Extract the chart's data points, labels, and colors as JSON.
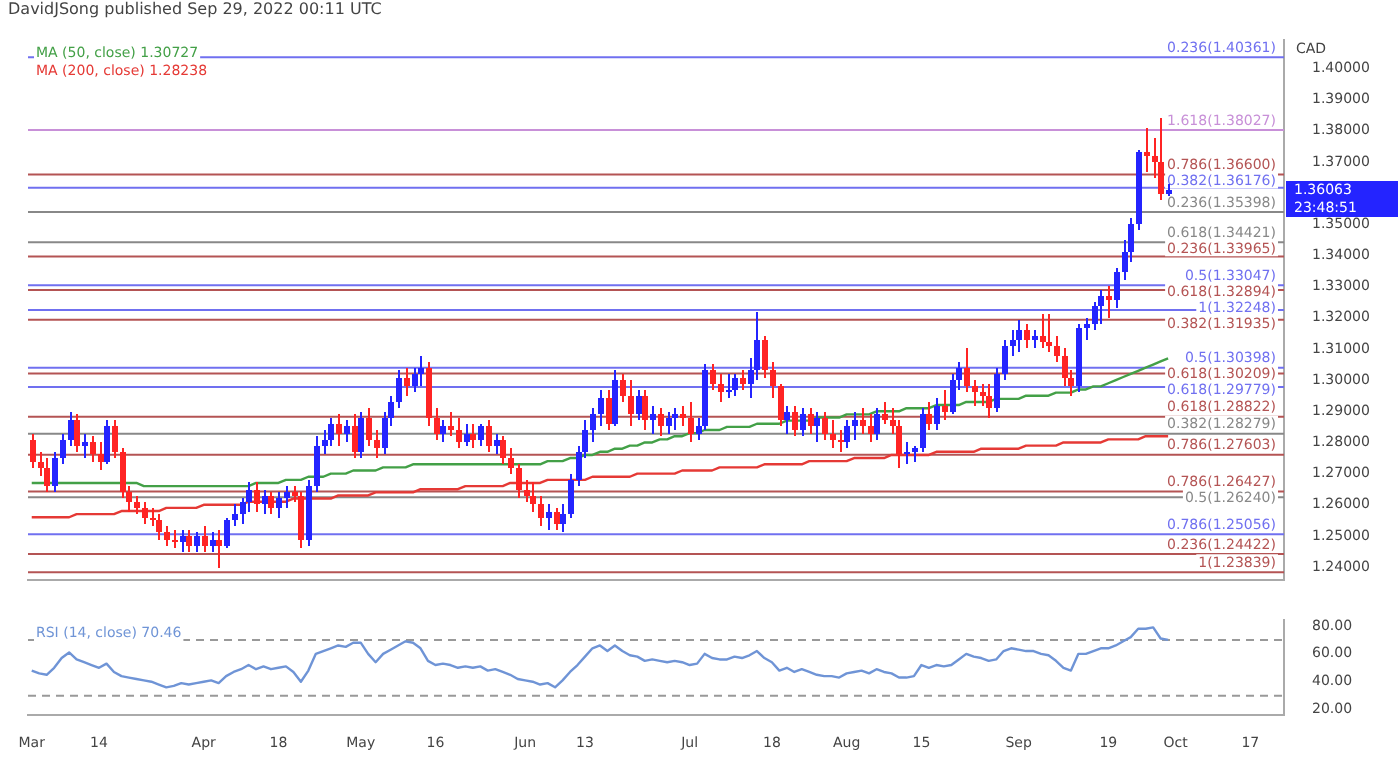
{
  "chart_data": [
    {
      "type": "candlestick",
      "title": "DavidJSong published Sep 29, 2022 00:11 UTC",
      "ylabel": "CAD",
      "legend": "top left",
      "tick_labels": "y",
      "ohlc": [
        [
          1.281,
          1.283,
          1.272,
          1.274
        ],
        [
          1.274,
          1.277,
          1.269,
          1.272
        ],
        [
          1.272,
          1.275,
          1.264,
          1.266
        ],
        [
          1.266,
          1.277,
          1.264,
          1.275
        ],
        [
          1.275,
          1.283,
          1.273,
          1.281
        ],
        [
          1.281,
          1.29,
          1.279,
          1.287
        ],
        [
          1.287,
          1.289,
          1.277,
          1.279
        ],
        [
          1.279,
          1.283,
          1.275,
          1.28
        ],
        [
          1.28,
          1.282,
          1.274,
          1.276
        ],
        [
          1.276,
          1.28,
          1.271,
          1.274
        ],
        [
          1.274,
          1.287,
          1.273,
          1.285
        ],
        [
          1.285,
          1.287,
          1.275,
          1.277
        ],
        [
          1.277,
          1.278,
          1.262,
          1.264
        ],
        [
          1.264,
          1.266,
          1.258,
          1.261
        ],
        [
          1.261,
          1.263,
          1.257,
          1.259
        ],
        [
          1.259,
          1.261,
          1.254,
          1.256
        ],
        [
          1.256,
          1.259,
          1.253,
          1.255
        ],
        [
          1.255,
          1.257,
          1.249,
          1.251
        ],
        [
          1.251,
          1.253,
          1.247,
          1.249
        ],
        [
          1.249,
          1.252,
          1.246,
          1.248
        ],
        [
          1.248,
          1.252,
          1.245,
          1.25
        ],
        [
          1.25,
          1.252,
          1.245,
          1.247
        ],
        [
          1.247,
          1.251,
          1.245,
          1.25
        ],
        [
          1.25,
          1.253,
          1.245,
          1.247
        ],
        [
          1.247,
          1.251,
          1.245,
          1.249
        ],
        [
          1.249,
          1.252,
          1.24,
          1.247
        ],
        [
          1.247,
          1.256,
          1.246,
          1.255
        ],
        [
          1.255,
          1.26,
          1.253,
          1.257
        ],
        [
          1.257,
          1.262,
          1.254,
          1.261
        ],
        [
          1.261,
          1.267,
          1.258,
          1.265
        ],
        [
          1.265,
          1.267,
          1.258,
          1.26
        ],
        [
          1.26,
          1.265,
          1.257,
          1.263
        ],
        [
          1.263,
          1.264,
          1.257,
          1.259
        ],
        [
          1.259,
          1.264,
          1.256,
          1.262
        ],
        [
          1.262,
          1.266,
          1.259,
          1.264
        ],
        [
          1.264,
          1.266,
          1.261,
          1.263
        ],
        [
          1.263,
          1.264,
          1.246,
          1.249
        ],
        [
          1.249,
          1.268,
          1.247,
          1.266
        ],
        [
          1.266,
          1.282,
          1.264,
          1.279
        ],
        [
          1.279,
          1.284,
          1.276,
          1.281
        ],
        [
          1.281,
          1.288,
          1.279,
          1.286
        ],
        [
          1.286,
          1.289,
          1.279,
          1.283
        ],
        [
          1.283,
          1.287,
          1.28,
          1.285
        ],
        [
          1.285,
          1.289,
          1.275,
          1.277
        ],
        [
          1.277,
          1.29,
          1.275,
          1.288
        ],
        [
          1.288,
          1.291,
          1.279,
          1.281
        ],
        [
          1.281,
          1.284,
          1.275,
          1.278
        ],
        [
          1.278,
          1.29,
          1.276,
          1.288
        ],
        [
          1.288,
          1.295,
          1.285,
          1.293
        ],
        [
          1.293,
          1.303,
          1.291,
          1.301
        ],
        [
          1.301,
          1.304,
          1.295,
          1.298
        ],
        [
          1.298,
          1.304,
          1.296,
          1.302
        ],
        [
          1.302,
          1.308,
          1.298,
          1.304
        ],
        [
          1.304,
          1.306,
          1.285,
          1.288
        ],
        [
          1.288,
          1.291,
          1.281,
          1.283
        ],
        [
          1.283,
          1.287,
          1.28,
          1.285
        ],
        [
          1.285,
          1.29,
          1.282,
          1.284
        ],
        [
          1.284,
          1.288,
          1.278,
          1.28
        ],
        [
          1.28,
          1.286,
          1.279,
          1.283
        ],
        [
          1.283,
          1.286,
          1.278,
          1.281
        ],
        [
          1.281,
          1.286,
          1.279,
          1.285
        ],
        [
          1.285,
          1.287,
          1.277,
          1.279
        ],
        [
          1.279,
          1.283,
          1.276,
          1.281
        ],
        [
          1.281,
          1.282,
          1.273,
          1.275
        ],
        [
          1.275,
          1.278,
          1.27,
          1.272
        ],
        [
          1.272,
          1.273,
          1.262,
          1.265
        ],
        [
          1.265,
          1.268,
          1.261,
          1.263
        ],
        [
          1.263,
          1.267,
          1.258,
          1.26
        ],
        [
          1.26,
          1.263,
          1.253,
          1.256
        ],
        [
          1.256,
          1.26,
          1.252,
          1.258
        ],
        [
          1.258,
          1.259,
          1.252,
          1.254
        ],
        [
          1.254,
          1.26,
          1.251,
          1.257
        ],
        [
          1.257,
          1.27,
          1.256,
          1.268
        ],
        [
          1.268,
          1.279,
          1.266,
          1.277
        ],
        [
          1.277,
          1.287,
          1.275,
          1.284
        ],
        [
          1.284,
          1.291,
          1.28,
          1.289
        ],
        [
          1.289,
          1.297,
          1.285,
          1.294
        ],
        [
          1.294,
          1.297,
          1.284,
          1.286
        ],
        [
          1.286,
          1.303,
          1.285,
          1.3
        ],
        [
          1.3,
          1.302,
          1.293,
          1.295
        ],
        [
          1.295,
          1.3,
          1.285,
          1.289
        ],
        [
          1.289,
          1.297,
          1.287,
          1.295
        ],
        [
          1.295,
          1.297,
          1.284,
          1.287
        ],
        [
          1.287,
          1.292,
          1.283,
          1.289
        ],
        [
          1.289,
          1.291,
          1.282,
          1.285
        ],
        [
          1.285,
          1.29,
          1.283,
          1.288
        ],
        [
          1.288,
          1.291,
          1.284,
          1.289
        ],
        [
          1.289,
          1.292,
          1.285,
          1.288
        ],
        [
          1.288,
          1.293,
          1.28,
          1.283
        ],
        [
          1.283,
          1.288,
          1.281,
          1.285
        ],
        [
          1.285,
          1.305,
          1.284,
          1.303
        ],
        [
          1.303,
          1.305,
          1.297,
          1.299
        ],
        [
          1.299,
          1.302,
          1.293,
          1.296
        ],
        [
          1.296,
          1.302,
          1.294,
          1.297
        ],
        [
          1.297,
          1.302,
          1.295,
          1.301
        ],
        [
          1.301,
          1.303,
          1.297,
          1.299
        ],
        [
          1.299,
          1.307,
          1.294,
          1.303
        ],
        [
          1.303,
          1.322,
          1.3,
          1.313
        ],
        [
          1.313,
          1.314,
          1.301,
          1.303
        ],
        [
          1.303,
          1.306,
          1.294,
          1.298
        ],
        [
          1.298,
          1.299,
          1.285,
          1.287
        ],
        [
          1.287,
          1.292,
          1.283,
          1.29
        ],
        [
          1.29,
          1.292,
          1.282,
          1.284
        ],
        [
          1.284,
          1.291,
          1.282,
          1.289
        ],
        [
          1.289,
          1.291,
          1.283,
          1.285
        ],
        [
          1.285,
          1.29,
          1.28,
          1.288
        ],
        [
          1.288,
          1.29,
          1.281,
          1.283
        ],
        [
          1.283,
          1.287,
          1.278,
          1.281
        ],
        [
          1.281,
          1.284,
          1.277,
          1.28
        ],
        [
          1.28,
          1.287,
          1.278,
          1.285
        ],
        [
          1.285,
          1.29,
          1.281,
          1.287
        ],
        [
          1.287,
          1.291,
          1.283,
          1.285
        ],
        [
          1.285,
          1.289,
          1.28,
          1.283
        ],
        [
          1.283,
          1.291,
          1.281,
          1.289
        ],
        [
          1.289,
          1.293,
          1.286,
          1.287
        ],
        [
          1.287,
          1.291,
          1.283,
          1.285
        ],
        [
          1.285,
          1.287,
          1.272,
          1.276
        ],
        [
          1.276,
          1.28,
          1.273,
          1.277
        ],
        [
          1.277,
          1.279,
          1.274,
          1.278
        ],
        [
          1.278,
          1.291,
          1.277,
          1.289
        ],
        [
          1.289,
          1.293,
          1.284,
          1.286
        ],
        [
          1.286,
          1.294,
          1.284,
          1.292
        ],
        [
          1.292,
          1.297,
          1.287,
          1.29
        ],
        [
          1.29,
          1.302,
          1.289,
          1.3
        ],
        [
          1.3,
          1.306,
          1.297,
          1.304
        ],
        [
          1.304,
          1.31,
          1.296,
          1.298
        ],
        [
          1.298,
          1.3,
          1.292,
          1.296
        ],
        [
          1.296,
          1.299,
          1.292,
          1.295
        ],
        [
          1.295,
          1.299,
          1.288,
          1.291
        ],
        [
          1.291,
          1.304,
          1.29,
          1.302
        ],
        [
          1.302,
          1.313,
          1.3,
          1.311
        ],
        [
          1.311,
          1.316,
          1.308,
          1.313
        ],
        [
          1.313,
          1.319,
          1.309,
          1.316
        ],
        [
          1.316,
          1.318,
          1.31,
          1.313
        ],
        [
          1.313,
          1.316,
          1.31,
          1.314
        ],
        [
          1.314,
          1.321,
          1.31,
          1.312
        ],
        [
          1.312,
          1.321,
          1.309,
          1.311
        ],
        [
          1.311,
          1.314,
          1.306,
          1.308
        ],
        [
          1.308,
          1.31,
          1.298,
          1.301
        ],
        [
          1.301,
          1.303,
          1.295,
          1.298
        ],
        [
          1.298,
          1.318,
          1.296,
          1.317
        ],
        [
          1.317,
          1.32,
          1.313,
          1.318
        ],
        [
          1.318,
          1.325,
          1.316,
          1.324
        ],
        [
          1.324,
          1.329,
          1.318,
          1.327
        ],
        [
          1.327,
          1.33,
          1.32,
          1.326
        ],
        [
          1.326,
          1.336,
          1.323,
          1.335
        ],
        [
          1.335,
          1.345,
          1.332,
          1.341
        ],
        [
          1.341,
          1.352,
          1.338,
          1.35
        ],
        [
          1.35,
          1.374,
          1.348,
          1.373
        ],
        [
          1.373,
          1.381,
          1.367,
          1.372
        ],
        [
          1.372,
          1.378,
          1.365,
          1.37
        ],
        [
          1.37,
          1.384,
          1.358,
          1.36
        ],
        [
          1.36,
          1.363,
          1.359,
          1.361
        ],
        null,
        null,
        null,
        null,
        null,
        null,
        null,
        null,
        null,
        null,
        null,
        null,
        null,
        null,
        null
      ],
      "colors": [
        "#ff2424",
        "#ff2424",
        "#ff2424",
        "#2424ff",
        "#2424ff",
        "#2424ff",
        "#ff2424",
        "#2424ff",
        "#ff2424",
        "#ff2424",
        "#2424ff",
        "#ff2424",
        "#ff2424",
        "#ff2424",
        "#ff2424",
        "#ff2424",
        "#ff2424",
        "#ff2424",
        "#ff2424",
        "#ff2424",
        "#2424ff",
        "#ff2424",
        "#2424ff",
        "#ff2424",
        "#2424ff",
        "#ff2424",
        "#2424ff",
        "#2424ff",
        "#2424ff",
        "#2424ff",
        "#ff2424",
        "#2424ff",
        "#ff2424",
        "#2424ff",
        "#2424ff",
        "#ff2424",
        "#ff2424",
        "#2424ff",
        "#2424ff",
        "#2424ff",
        "#2424ff",
        "#ff2424",
        "#2424ff",
        "#ff2424",
        "#2424ff",
        "#ff2424",
        "#ff2424",
        "#2424ff",
        "#2424ff",
        "#2424ff",
        "#ff2424",
        "#2424ff",
        "#2424ff",
        "#ff2424",
        "#ff2424",
        "#2424ff",
        "#ff2424",
        "#ff2424",
        "#2424ff",
        "#ff2424",
        "#2424ff",
        "#ff2424",
        "#2424ff",
        "#ff2424",
        "#ff2424",
        "#ff2424",
        "#ff2424",
        "#ff2424",
        "#ff2424",
        "#2424ff",
        "#ff2424",
        "#2424ff",
        "#2424ff",
        "#2424ff",
        "#2424ff",
        "#2424ff",
        "#2424ff",
        "#ff2424",
        "#2424ff",
        "#ff2424",
        "#ff2424",
        "#2424ff",
        "#ff2424",
        "#2424ff",
        "#ff2424",
        "#2424ff",
        "#2424ff",
        "#ff2424",
        "#ff2424",
        "#2424ff",
        "#2424ff",
        "#ff2424",
        "#ff2424",
        "#2424ff",
        "#2424ff",
        "#ff2424",
        "#2424ff",
        "#2424ff",
        "#ff2424",
        "#ff2424",
        "#ff2424",
        "#2424ff",
        "#ff2424",
        "#2424ff",
        "#ff2424",
        "#2424ff",
        "#ff2424",
        "#ff2424",
        "#ff2424",
        "#2424ff",
        "#2424ff",
        "#ff2424",
        "#ff2424",
        "#2424ff",
        "#ff2424",
        "#ff2424",
        "#ff2424",
        "#2424ff",
        "#2424ff",
        "#2424ff",
        "#ff2424",
        "#2424ff",
        "#ff2424",
        "#2424ff",
        "#2424ff",
        "#ff2424",
        "#ff2424",
        "#ff2424",
        "#ff2424",
        "#2424ff",
        "#2424ff",
        "#2424ff",
        "#2424ff",
        "#ff2424",
        "#2424ff",
        "#ff2424",
        "#ff2424",
        "#ff2424",
        "#ff2424",
        "#ff2424",
        "#2424ff",
        "#2424ff",
        "#2424ff",
        "#2424ff",
        "#ff2424",
        "#2424ff",
        "#2424ff",
        "#2424ff",
        "#2424ff",
        "#ff2424",
        "#ff2424",
        "#ff2424",
        "#2424ff",
        null,
        null,
        null,
        null,
        null,
        null,
        null,
        null,
        null,
        null,
        null,
        null,
        null,
        null,
        null
      ],
      "series": [
        {
          "type": "line",
          "name": "MA (50, close) 1.30727",
          "color": "#43a047",
          "values": [
            1.267,
            1.267,
            1.267,
            1.267,
            1.267,
            1.267,
            1.267,
            1.267,
            1.267,
            1.267,
            1.267,
            1.267,
            1.267,
            1.267,
            1.267,
            1.266,
            1.266,
            1.266,
            1.266,
            1.266,
            1.266,
            1.266,
            1.266,
            1.266,
            1.266,
            1.266,
            1.266,
            1.266,
            1.266,
            1.266,
            1.267,
            1.267,
            1.267,
            1.267,
            1.268,
            1.268,
            1.268,
            1.269,
            1.269,
            1.269,
            1.27,
            1.27,
            1.27,
            1.271,
            1.271,
            1.271,
            1.271,
            1.272,
            1.272,
            1.272,
            1.272,
            1.273,
            1.273,
            1.273,
            1.273,
            1.273,
            1.273,
            1.273,
            1.273,
            1.273,
            1.273,
            1.273,
            1.273,
            1.273,
            1.273,
            1.273,
            1.273,
            1.273,
            1.273,
            1.274,
            1.274,
            1.274,
            1.275,
            1.275,
            1.276,
            1.276,
            1.277,
            1.277,
            1.278,
            1.278,
            1.279,
            1.279,
            1.28,
            1.28,
            1.281,
            1.281,
            1.282,
            1.282,
            1.283,
            1.283,
            1.284,
            1.284,
            1.284,
            1.285,
            1.285,
            1.285,
            1.285,
            1.286,
            1.286,
            1.286,
            1.286,
            1.287,
            1.287,
            1.287,
            1.287,
            1.288,
            1.288,
            1.288,
            1.288,
            1.289,
            1.289,
            1.289,
            1.289,
            1.29,
            1.29,
            1.29,
            1.29,
            1.291,
            1.291,
            1.291,
            1.291,
            1.292,
            1.292,
            1.292,
            1.292,
            1.293,
            1.293,
            1.293,
            1.293,
            1.294,
            1.294,
            1.294,
            1.294,
            1.295,
            1.295,
            1.295,
            1.295,
            1.296,
            1.296,
            1.296,
            1.297,
            1.297,
            1.298,
            1.298,
            1.299,
            1.3,
            1.301,
            1.302,
            1.303,
            1.304,
            1.305,
            1.306,
            1.307,
            null,
            null,
            null,
            null,
            null,
            null,
            null,
            null,
            null,
            null,
            null,
            null,
            null,
            null,
            null
          ]
        },
        {
          "type": "line",
          "name": "MA (200, close) 1.28238",
          "color": "#e53935",
          "values": [
            1.256,
            1.256,
            1.256,
            1.256,
            1.256,
            1.256,
            1.257,
            1.257,
            1.257,
            1.257,
            1.257,
            1.257,
            1.258,
            1.258,
            1.258,
            1.258,
            1.258,
            1.258,
            1.259,
            1.259,
            1.259,
            1.259,
            1.259,
            1.26,
            1.26,
            1.26,
            1.26,
            1.26,
            1.26,
            1.261,
            1.261,
            1.261,
            1.261,
            1.261,
            1.261,
            1.262,
            1.262,
            1.262,
            1.262,
            1.262,
            1.262,
            1.263,
            1.263,
            1.263,
            1.263,
            1.263,
            1.264,
            1.264,
            1.264,
            1.264,
            1.264,
            1.264,
            1.265,
            1.265,
            1.265,
            1.265,
            1.265,
            1.265,
            1.266,
            1.266,
            1.266,
            1.266,
            1.266,
            1.266,
            1.267,
            1.267,
            1.267,
            1.267,
            1.267,
            1.268,
            1.268,
            1.268,
            1.268,
            1.268,
            1.268,
            1.269,
            1.269,
            1.269,
            1.269,
            1.269,
            1.269,
            1.27,
            1.27,
            1.27,
            1.27,
            1.27,
            1.27,
            1.271,
            1.271,
            1.271,
            1.271,
            1.271,
            1.272,
            1.272,
            1.272,
            1.272,
            1.272,
            1.272,
            1.273,
            1.273,
            1.273,
            1.273,
            1.273,
            1.273,
            1.274,
            1.274,
            1.274,
            1.274,
            1.274,
            1.274,
            1.275,
            1.275,
            1.275,
            1.275,
            1.275,
            1.276,
            1.276,
            1.276,
            1.276,
            1.276,
            1.276,
            1.277,
            1.277,
            1.277,
            1.277,
            1.277,
            1.277,
            1.278,
            1.278,
            1.278,
            1.278,
            1.278,
            1.278,
            1.279,
            1.279,
            1.279,
            1.279,
            1.279,
            1.28,
            1.28,
            1.28,
            1.28,
            1.28,
            1.28,
            1.281,
            1.281,
            1.281,
            1.281,
            1.281,
            1.282,
            1.282,
            1.282,
            1.282,
            null,
            null,
            null,
            null,
            null,
            null,
            null,
            null,
            null,
            null,
            null,
            null,
            null,
            null,
            null
          ]
        }
      ],
      "ylim": [
        1.236,
        1.409
      ],
      "yticks": [
        {
          "value": 1.24,
          "label": "1.24000"
        },
        {
          "value": 1.25,
          "label": "1.25000"
        },
        {
          "value": 1.26,
          "label": "1.26000"
        },
        {
          "value": 1.27,
          "label": "1.27000"
        },
        {
          "value": 1.28,
          "label": "1.28000"
        },
        {
          "value": 1.29,
          "label": "1.29000"
        },
        {
          "value": 1.3,
          "label": "1.30000"
        },
        {
          "value": 1.31,
          "label": "1.31000"
        },
        {
          "value": 1.32,
          "label": "1.32000"
        },
        {
          "value": 1.33,
          "label": "1.33000"
        },
        {
          "value": 1.34,
          "label": "1.34000"
        },
        {
          "value": 1.35,
          "label": "1.35000"
        },
        {
          "value": 1.37,
          "label": "1.37000"
        },
        {
          "value": 1.38,
          "label": "1.38000"
        },
        {
          "value": 1.39,
          "label": "1.39000"
        },
        {
          "value": 1.4,
          "label": "1.40000"
        }
      ],
      "ref_lines": [
        {
          "axis": "y",
          "value": 1.40361,
          "label": "0.236(1.40361)",
          "color": "#7070f0"
        },
        {
          "axis": "y",
          "value": 1.38027,
          "label": "1.618(1.38027)",
          "color": "#c890d8"
        },
        {
          "axis": "y",
          "value": 1.366,
          "label": "0.786(1.36600)",
          "color": "#b45454"
        },
        {
          "axis": "y",
          "value": 1.36176,
          "label": "0.382(1.36176)",
          "color": "#7070f0"
        },
        {
          "axis": "y",
          "value": 1.35398,
          "label": "0.236(1.35398)",
          "color": "#888888"
        },
        {
          "axis": "y",
          "value": 1.34421,
          "label": "0.618(1.34421)",
          "color": "#888888"
        },
        {
          "axis": "y",
          "value": 1.33965,
          "label": "0.236(1.33965)",
          "color": "#b45454"
        },
        {
          "axis": "y",
          "value": 1.33047,
          "label": "0.5(1.33047)",
          "color": "#7070f0"
        },
        {
          "axis": "y",
          "value": 1.32894,
          "label": "0.618(1.32894)",
          "color": "#b45454"
        },
        {
          "axis": "y",
          "value": 1.32248,
          "label": "1(1.32248)",
          "color": "#7070f0"
        },
        {
          "axis": "y",
          "value": 1.31935,
          "label": "0.382(1.31935)",
          "color": "#b45454"
        },
        {
          "axis": "y",
          "value": 1.30398,
          "label": "0.5(1.30398)",
          "color": "#7070f0"
        },
        {
          "axis": "y",
          "value": 1.30209,
          "label": "0.618(1.30209)",
          "color": "#b45454"
        },
        {
          "axis": "y",
          "value": 1.29779,
          "label": "0.618(1.29779)",
          "color": "#7070f0"
        },
        {
          "axis": "y",
          "value": 1.28822,
          "label": "0.618(1.28822)",
          "color": "#b45454"
        },
        {
          "axis": "y",
          "value": 1.28279,
          "label": "0.382(1.28279)",
          "color": "#888888"
        },
        {
          "axis": "y",
          "value": 1.27603,
          "label": "0.786(1.27603)",
          "color": "#b45454"
        },
        {
          "axis": "y",
          "value": 1.26427,
          "label": "0.786(1.26427)",
          "color": "#b45454"
        },
        {
          "axis": "y",
          "value": 1.2624,
          "label": "0.5(1.26240)",
          "color": "#888888"
        },
        {
          "axis": "y",
          "value": 1.25056,
          "label": "0.786(1.25056)",
          "color": "#7070f0"
        },
        {
          "axis": "y",
          "value": 1.24422,
          "label": "0.236(1.24422)",
          "color": "#b45454"
        },
        {
          "axis": "y",
          "value": 1.23839,
          "label": "1(1.23839)",
          "color": "#b45454"
        }
      ],
      "annotations": [
        "1.36063",
        "23:48:51"
      ]
    },
    {
      "type": "line",
      "legend": "top left",
      "categories": [
        "Mar",
        null,
        null,
        null,
        null,
        null,
        null,
        null,
        null,
        "14",
        null,
        null,
        null,
        null,
        null,
        null,
        null,
        null,
        null,
        null,
        null,
        null,
        null,
        "Apr",
        null,
        null,
        null,
        null,
        null,
        null,
        null,
        null,
        null,
        "18",
        null,
        null,
        null,
        null,
        null,
        null,
        null,
        null,
        null,
        null,
        "May",
        null,
        null,
        null,
        null,
        null,
        null,
        null,
        null,
        null,
        "16",
        null,
        null,
        null,
        null,
        null,
        null,
        null,
        null,
        null,
        null,
        null,
        "Jun",
        null,
        null,
        null,
        null,
        null,
        null,
        null,
        "13",
        null,
        null,
        null,
        null,
        null,
        null,
        null,
        null,
        null,
        null,
        null,
        null,
        null,
        "Jul",
        null,
        null,
        null,
        null,
        null,
        null,
        null,
        null,
        null,
        null,
        "18",
        null,
        null,
        null,
        null,
        null,
        null,
        null,
        null,
        null,
        "Aug",
        null,
        null,
        null,
        null,
        null,
        null,
        null,
        null,
        null,
        "15",
        null,
        null,
        null,
        null,
        null,
        null,
        null,
        null,
        null,
        null,
        null,
        null,
        "Sep",
        null,
        null,
        null,
        null,
        null,
        null,
        null,
        null,
        null,
        null,
        null,
        "19",
        null,
        null,
        null,
        null,
        null,
        null,
        null,
        null,
        "Oct",
        null,
        null,
        null,
        null,
        null,
        null,
        null,
        null,
        null,
        "17",
        null,
        null,
        null,
        null
      ],
      "series": [
        {
          "name": "RSI (14, close) 70.46",
          "color": "#6f94d6",
          "values": [
            48,
            46,
            45,
            50,
            57,
            61,
            56,
            54,
            52,
            50,
            53,
            47,
            44,
            43,
            42,
            41,
            40,
            38,
            36,
            37,
            39,
            38,
            39,
            40,
            41,
            39,
            44,
            47,
            49,
            52,
            49,
            51,
            49,
            50,
            51,
            47,
            40,
            48,
            60,
            62,
            64,
            66,
            65,
            68,
            68,
            60,
            54,
            60,
            63,
            66,
            69,
            68,
            64,
            55,
            52,
            53,
            52,
            50,
            51,
            50,
            51,
            48,
            49,
            47,
            45,
            42,
            41,
            40,
            38,
            39,
            36,
            41,
            47,
            52,
            58,
            64,
            66,
            62,
            66,
            62,
            59,
            58,
            55,
            56,
            55,
            54,
            55,
            54,
            52,
            53,
            60,
            57,
            56,
            56,
            58,
            57,
            59,
            62,
            57,
            54,
            48,
            50,
            47,
            49,
            47,
            45,
            44,
            44,
            43,
            46,
            47,
            48,
            46,
            49,
            47,
            46,
            43,
            43,
            44,
            52,
            50,
            52,
            51,
            52,
            56,
            60,
            58,
            57,
            55,
            56,
            62,
            64,
            63,
            62,
            62,
            60,
            59,
            55,
            50,
            48,
            60,
            60,
            62,
            64,
            64,
            66,
            69,
            72,
            78,
            78,
            79,
            71,
            70,
            null,
            null,
            null,
            null,
            null,
            null,
            null,
            null,
            null,
            null,
            null,
            null,
            null,
            null,
            null
          ]
        }
      ],
      "ylim": [
        16,
        84
      ],
      "yticks": [
        {
          "value": 20,
          "label": "20.00"
        },
        {
          "value": 40,
          "label": "40.00"
        },
        {
          "value": 60,
          "label": "60.00"
        },
        {
          "value": 80,
          "label": "80.00"
        }
      ],
      "ref_lines": [
        {
          "axis": "y",
          "value": 70,
          "color": "#999999",
          "line_style": "dashed"
        },
        {
          "axis": "y",
          "value": 30,
          "color": "#999999",
          "line_style": "dashed"
        }
      ]
    }
  ]
}
